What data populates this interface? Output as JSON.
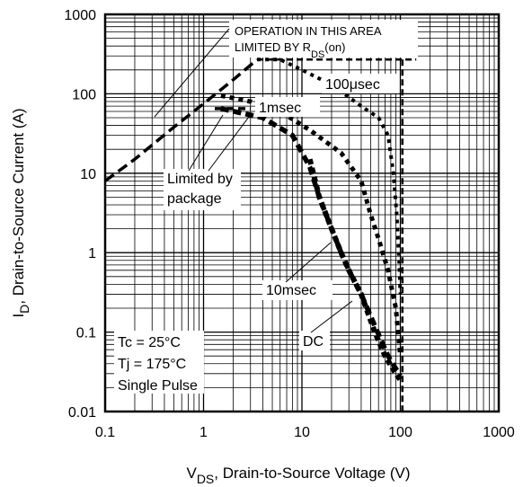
{
  "chart_data": {
    "type": "line",
    "title": "",
    "x_scale": "log",
    "y_scale": "log",
    "xlim": [
      0.1,
      1000
    ],
    "ylim": [
      0.01,
      1000
    ],
    "grid": true,
    "x_ticks": [
      "0.1",
      "1",
      "10",
      "100",
      "1000"
    ],
    "y_ticks": [
      "0.01",
      "0.1",
      "1",
      "10",
      "100",
      "1000"
    ],
    "xlabel": {
      "prefix": "V",
      "sub": "DS",
      "suffix": ", Drain-to-Source Voltage (V)"
    },
    "ylabel": {
      "prefix": "I",
      "sub": "D",
      "suffix": ",  Drain-to-Source Current (A)"
    },
    "annotations": {
      "operation_line1": "OPERATION IN THIS AREA",
      "operation_line2_prefix": "LIMITED BY R",
      "operation_line2_sub": "DS",
      "operation_line2_suffix": "(on)",
      "limited_line1": "Limited by",
      "limited_line2": "package",
      "label_100us": "100μsec",
      "label_1ms": "1msec",
      "label_10ms": "10msec",
      "label_dc": "DC"
    },
    "conditions": [
      "Tc = 25°C",
      "Tj = 175°C",
      "Single Pulse"
    ],
    "series": [
      {
        "key": "rds_on",
        "points": [
          [
            0.1,
            8
          ],
          [
            0.2,
            15
          ],
          [
            0.5,
            38
          ],
          [
            1.0,
            75
          ],
          [
            2.0,
            150
          ],
          [
            3.5,
            270
          ]
        ]
      },
      {
        "key": "limit_100us",
        "points": [
          [
            3.5,
            270
          ],
          [
            6,
            270
          ],
          [
            10,
            200
          ],
          [
            20,
            130
          ],
          [
            40,
            70
          ],
          [
            60,
            50
          ],
          [
            75,
            30
          ],
          [
            85,
            10
          ],
          [
            92,
            3
          ],
          [
            97,
            0.8
          ],
          [
            100,
            0.3
          ]
        ]
      },
      {
        "key": "limit_1ms",
        "points": [
          [
            1.5,
            95
          ],
          [
            3,
            80
          ],
          [
            6,
            60
          ],
          [
            12,
            35
          ],
          [
            25,
            18
          ],
          [
            40,
            8
          ],
          [
            50,
            3
          ],
          [
            60,
            1.5
          ],
          [
            75,
            0.6
          ],
          [
            90,
            0.2
          ],
          [
            100,
            0.05
          ]
        ]
      },
      {
        "key": "limit_10ms",
        "points": [
          [
            1.5,
            65
          ],
          [
            4,
            50
          ],
          [
            8,
            30
          ],
          [
            12,
            12
          ],
          [
            15,
            5
          ],
          [
            20,
            2
          ],
          [
            25,
            1
          ],
          [
            30,
            0.6
          ],
          [
            40,
            0.3
          ],
          [
            55,
            0.12
          ],
          [
            75,
            0.05
          ],
          [
            100,
            0.028
          ]
        ]
      },
      {
        "key": "limit_dc",
        "points": [
          [
            12,
            15
          ],
          [
            15,
            5
          ],
          [
            20,
            2
          ],
          [
            25,
            1
          ],
          [
            30,
            0.6
          ],
          [
            40,
            0.3
          ],
          [
            55,
            0.1
          ],
          [
            70,
            0.05
          ],
          [
            90,
            0.03
          ],
          [
            100,
            0.025
          ]
        ]
      },
      {
        "key": "package_limit",
        "points": [
          [
            1.3,
            65
          ],
          [
            3,
            65
          ]
        ]
      },
      {
        "key": "max_current",
        "points": [
          [
            3.5,
            270
          ],
          [
            145,
            270
          ]
        ]
      },
      {
        "key": "max_voltage",
        "points": [
          [
            105,
            270
          ],
          [
            105,
            0.01
          ]
        ]
      }
    ]
  }
}
